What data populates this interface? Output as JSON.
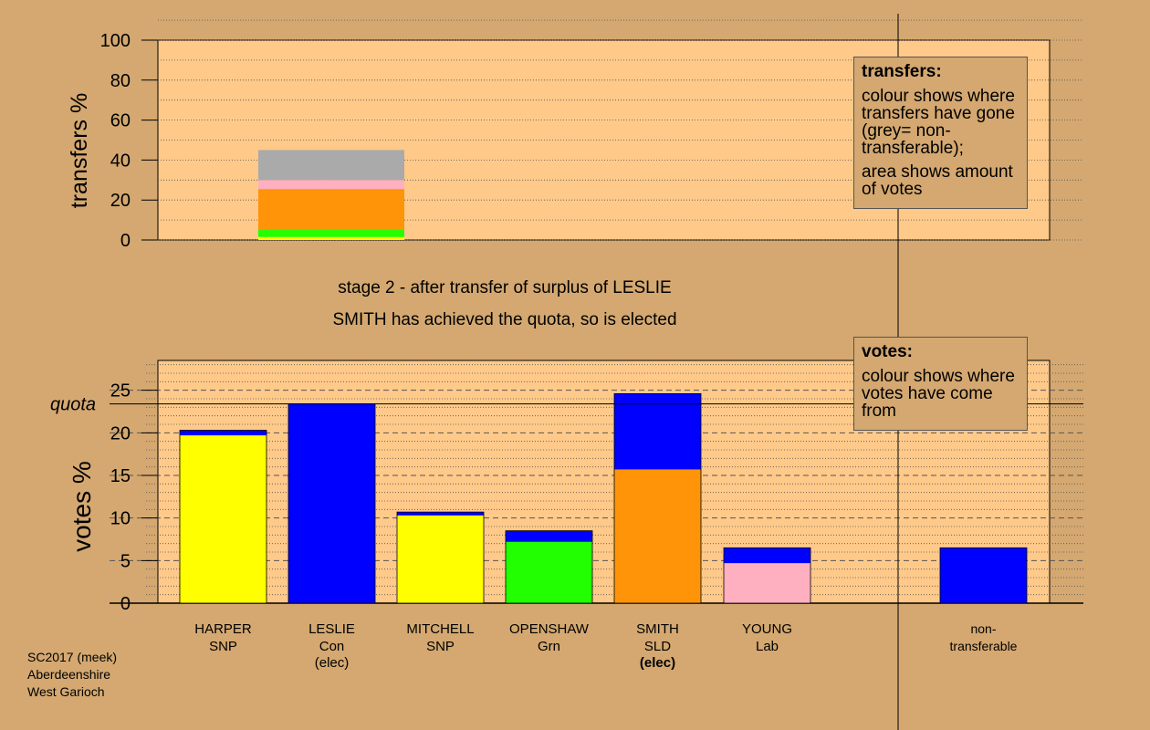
{
  "chart_data": [
    {
      "type": "bar",
      "stacked": true,
      "ylabel": "transfers %",
      "ylim": [
        0,
        100
      ],
      "yticks": [
        0,
        20,
        40,
        60,
        80,
        100
      ],
      "grid": "dotted horizontal every 10",
      "bars": [
        {
          "candidate": "LESLIE",
          "segments": [
            {
              "value": 1.5,
              "color": "#ffff00"
            },
            {
              "value": 3.5,
              "color": "#22ff00"
            },
            {
              "value": 20.5,
              "color": "#ff9408"
            },
            {
              "value": 4.5,
              "color": "#ffb0c0"
            },
            {
              "value": 15.0,
              "color": "#aaaaaa"
            }
          ]
        }
      ]
    },
    {
      "type": "bar",
      "stacked": true,
      "ylabel": "votes %",
      "ylim": [
        0,
        28.5
      ],
      "yticks": [
        0,
        5,
        10,
        15,
        20,
        25
      ],
      "quota": 23.4,
      "quota_label": "quota",
      "grid": "dotted horizontal every 1, dashed every 5",
      "bars": [
        {
          "name": "HARPER",
          "party": "SNP",
          "note": "",
          "segments": [
            {
              "value": 19.7,
              "color": "#ffff00"
            },
            {
              "value": 0.6,
              "color": "#0000ff"
            }
          ]
        },
        {
          "name": "LESLIE",
          "party": "Con",
          "note": "(elec)",
          "segments": [
            {
              "value": 23.4,
              "color": "#0000ff"
            }
          ]
        },
        {
          "name": "MITCHELL",
          "party": "SNP",
          "note": "",
          "segments": [
            {
              "value": 10.3,
              "color": "#ffff00"
            },
            {
              "value": 0.4,
              "color": "#0000ff"
            }
          ]
        },
        {
          "name": "OPENSHAW",
          "party": "Grn",
          "note": "",
          "segments": [
            {
              "value": 7.2,
              "color": "#22ff00"
            },
            {
              "value": 1.3,
              "color": "#0000ff"
            }
          ]
        },
        {
          "name": "SMITH",
          "party": "SLD",
          "note": "(elec)",
          "note_bold": true,
          "segments": [
            {
              "value": 15.7,
              "color": "#ff9408"
            },
            {
              "value": 8.9,
              "color": "#0000ff"
            }
          ]
        },
        {
          "name": "YOUNG",
          "party": "Lab",
          "note": "",
          "segments": [
            {
              "value": 4.7,
              "color": "#ffb0c0"
            },
            {
              "value": 1.8,
              "color": "#0000ff"
            }
          ]
        },
        {
          "name": "non-",
          "party": "transferable",
          "note": "",
          "nontransferable": true,
          "segments": [
            {
              "value": 6.5,
              "color": "#0000ff"
            }
          ]
        }
      ]
    }
  ],
  "legends": {
    "transfers": {
      "title": "transfers:",
      "line1": "colour shows where transfers have gone (grey= non-transferable);",
      "line2": "area shows amount of votes"
    },
    "votes": {
      "title": "votes:",
      "line1": "colour shows where votes have come from"
    }
  },
  "captions": {
    "stage": "stage 2 - after transfer of surplus of LESLIE",
    "result": "SMITH has achieved the quota, so is elected"
  },
  "footer": {
    "line1": "SC2017 (meek)",
    "line2": "Aberdeenshire",
    "line3": "West Garioch"
  },
  "colors": {
    "background": "#d4a870",
    "plot_background": "#ffc98a"
  }
}
